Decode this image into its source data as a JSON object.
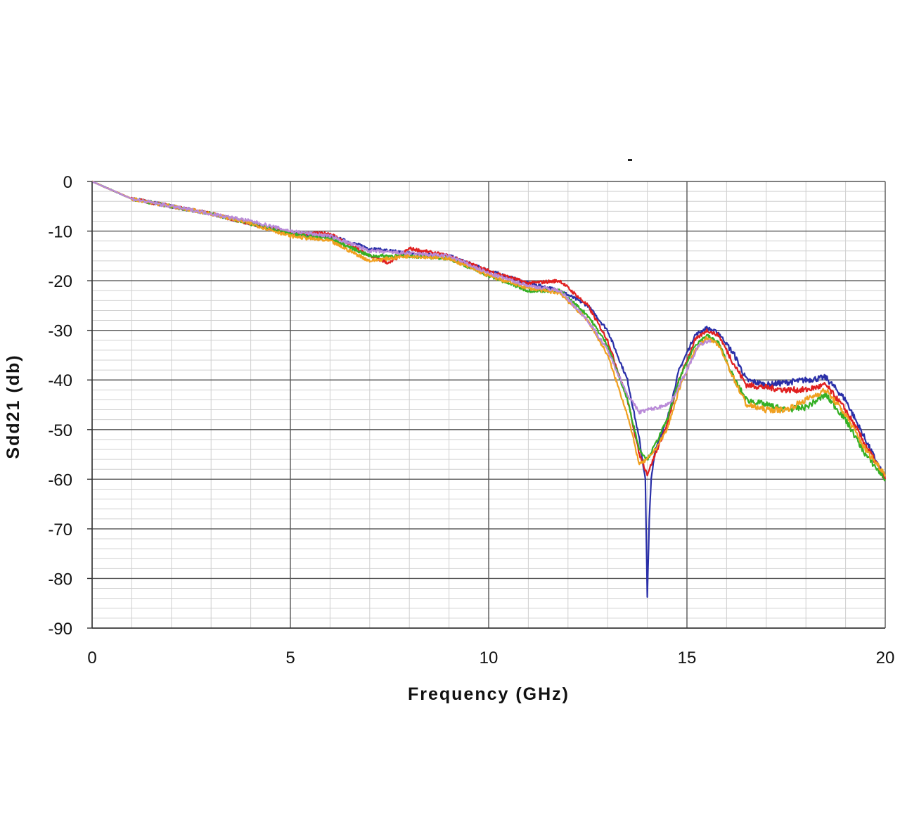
{
  "chart_data": {
    "type": "line",
    "title": "",
    "xlabel": "Frequency (GHz)",
    "ylabel": "Sdd21 (db)",
    "xlim": [
      0,
      20
    ],
    "ylim": [
      -90,
      0
    ],
    "x_ticks": [
      0,
      5,
      10,
      15,
      20
    ],
    "y_ticks": [
      0,
      -10,
      -20,
      -30,
      -40,
      -50,
      -60,
      -70,
      -80,
      -90
    ],
    "x_tick_labels": [
      "0",
      "5",
      "10",
      "15",
      "20"
    ],
    "y_tick_labels": [
      "0",
      "-10",
      "-20",
      "-30",
      "-40",
      "-50",
      "-60",
      "-70",
      "-80",
      "-90"
    ],
    "grid": true,
    "legend": "none",
    "series": [
      {
        "color": "#2a2fa8",
        "x": [
          0,
          1,
          2,
          3,
          4,
          5,
          6,
          7,
          8,
          9,
          10,
          11,
          11.8,
          12.5,
          13.0,
          13.5,
          13.8,
          13.95,
          14.0,
          14.05,
          14.1,
          14.2,
          14.5,
          14.8,
          15.2,
          15.5,
          15.8,
          16.2,
          16.5,
          17,
          17.5,
          18,
          18.5,
          19,
          19.5,
          20
        ],
        "y": [
          0,
          -3.5,
          -5,
          -6.5,
          -8.5,
          -10.5,
          -11,
          -13.5,
          -14.5,
          -15,
          -18,
          -20.5,
          -22,
          -25,
          -30,
          -40,
          -52,
          -60,
          -84,
          -68,
          -60,
          -54,
          -48,
          -38,
          -31,
          -29.5,
          -30.5,
          -35,
          -40,
          -41,
          -40.5,
          -40,
          -39.5,
          -44,
          -52,
          -60
        ]
      },
      {
        "color": "#e02020",
        "x": [
          0,
          1,
          2,
          3,
          4,
          5,
          6,
          7,
          7.5,
          8,
          9,
          10,
          11,
          11.8,
          12.5,
          13.0,
          13.5,
          13.8,
          14.0,
          14.2,
          14.5,
          14.8,
          15.2,
          15.5,
          15.8,
          16.2,
          16.5,
          17,
          17.5,
          18,
          18.5,
          19,
          19.5,
          20
        ],
        "y": [
          0,
          -3.5,
          -5,
          -6.5,
          -8.5,
          -10.5,
          -10.5,
          -15,
          -16.5,
          -13.5,
          -15,
          -18,
          -20.5,
          -20,
          -25,
          -32,
          -44,
          -55,
          -59,
          -55,
          -49,
          -40,
          -32,
          -30,
          -31,
          -37,
          -41,
          -41.5,
          -42,
          -42,
          -41,
          -46,
          -53,
          -60
        ]
      },
      {
        "color": "#35b025",
        "x": [
          0,
          1,
          2,
          3,
          4,
          5,
          6,
          7,
          8,
          9,
          10,
          11,
          11.8,
          12.5,
          13.0,
          13.5,
          13.8,
          14.0,
          14.2,
          14.5,
          14.8,
          15.2,
          15.5,
          15.8,
          16.2,
          16.5,
          17,
          17.5,
          18,
          18.5,
          19,
          19.5,
          20
        ],
        "y": [
          0,
          -3.5,
          -5,
          -6.5,
          -8.5,
          -10.5,
          -11.5,
          -15,
          -15,
          -15.5,
          -19,
          -22,
          -22,
          -27,
          -33,
          -44,
          -54,
          -56,
          -53,
          -48,
          -40,
          -33,
          -31,
          -32.5,
          -40,
          -44,
          -45,
          -46,
          -45.5,
          -43,
          -48,
          -55,
          -60
        ]
      },
      {
        "color": "#f0a020",
        "x": [
          0,
          1,
          2,
          3,
          4,
          5,
          6,
          7,
          8,
          9,
          10,
          11,
          11.8,
          12.5,
          13.0,
          13.5,
          13.8,
          14.0,
          14.2,
          14.5,
          14.8,
          15.2,
          15.5,
          15.8,
          16.2,
          16.5,
          17,
          17.5,
          18,
          18.5,
          19,
          19.5,
          20
        ],
        "y": [
          0,
          -3.5,
          -5,
          -6.5,
          -8.5,
          -11,
          -12,
          -16,
          -15,
          -15.5,
          -19,
          -21.5,
          -22.5,
          -28,
          -35,
          -47,
          -57,
          -56,
          -54,
          -50,
          -42,
          -34,
          -31.5,
          -33,
          -40,
          -45,
          -46,
          -46,
          -44,
          -42,
          -47,
          -54,
          -59
        ]
      },
      {
        "color": "#b98ad8",
        "x": [
          0,
          1,
          2,
          3,
          4,
          5,
          6,
          7,
          8,
          9,
          10,
          11,
          11.8,
          12.5,
          13.0,
          13.5,
          13.8,
          14.0,
          14.3,
          14.6,
          15.0,
          15.3,
          15.6
        ],
        "y": [
          0,
          -3.5,
          -5,
          -6.5,
          -8,
          -10,
          -11,
          -14,
          -14.5,
          -15,
          -18.5,
          -21,
          -22,
          -28,
          -34,
          -43,
          -46.5,
          -46,
          -45.5,
          -44.5,
          -38,
          -33,
          -32
        ]
      }
    ]
  }
}
